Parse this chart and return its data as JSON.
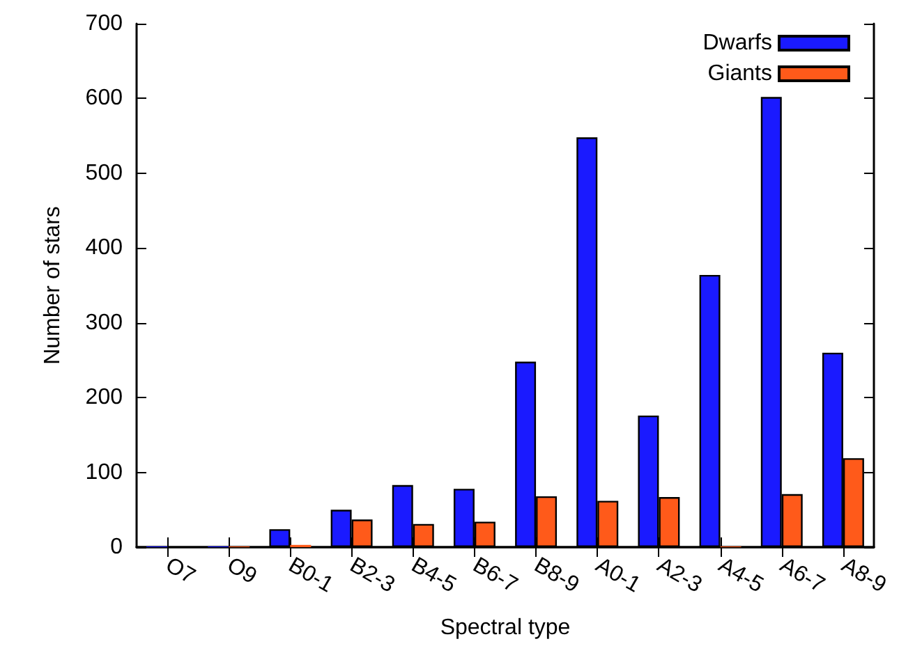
{
  "chart_data": {
    "type": "bar",
    "xlabel": "Spectral type",
    "ylabel": "Number of stars",
    "categories": [
      "O7",
      "O9",
      "B0-1",
      "B2-3",
      "B4-5",
      "B6-7",
      "B8-9",
      "A0-1",
      "A2-3",
      "A4-5",
      "A6-7",
      "A8-9"
    ],
    "series": [
      {
        "name": "Dwarfs",
        "color": "#1a1aff",
        "values": [
          1,
          1,
          24,
          50,
          83,
          78,
          248,
          548,
          176,
          364,
          602,
          260
        ]
      },
      {
        "name": "Giants",
        "color": "#ff5a1a",
        "values": [
          0,
          1,
          3,
          37,
          31,
          34,
          68,
          62,
          67,
          1,
          71,
          119
        ]
      }
    ],
    "ylim": [
      0,
      700
    ],
    "yticks": [
      0,
      100,
      200,
      300,
      400,
      500,
      600,
      700
    ],
    "grid": false,
    "legend": "top right"
  }
}
